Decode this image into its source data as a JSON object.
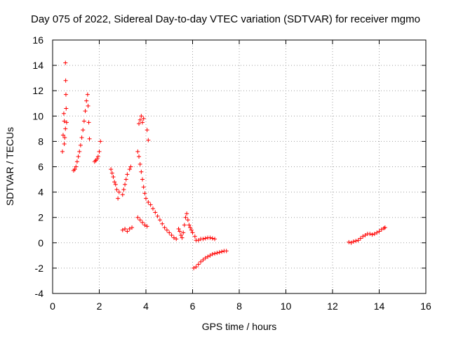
{
  "chart_data": {
    "type": "scatter",
    "title": "Day 075 of 2022, Sidereal Day-to-day VTEC variation (SDTVAR) for receiver mgmo",
    "xlabel": "GPS time / hours",
    "ylabel": "SDTVAR / TECUs",
    "xlim": [
      0,
      16
    ],
    "ylim": [
      -4,
      16
    ],
    "xticks": [
      "0",
      "2",
      "4",
      "6",
      "8",
      "10",
      "12",
      "14",
      "16"
    ],
    "yticks": [
      "-4",
      "-2",
      "0",
      "2",
      "4",
      "6",
      "8",
      "10",
      "12",
      "14",
      "16"
    ],
    "grid": true,
    "marker": "+",
    "series": [
      {
        "name": "SDTVAR",
        "color": "#ff0000",
        "points": [
          [
            0.42,
            7.2
          ],
          [
            0.45,
            8.5
          ],
          [
            0.48,
            10.2
          ],
          [
            0.5,
            9.6
          ],
          [
            0.5,
            7.8
          ],
          [
            0.52,
            8.3
          ],
          [
            0.55,
            9.0
          ],
          [
            0.55,
            14.2
          ],
          [
            0.56,
            12.8
          ],
          [
            0.57,
            11.7
          ],
          [
            0.58,
            10.6
          ],
          [
            0.6,
            9.5
          ],
          [
            0.9,
            5.7
          ],
          [
            0.95,
            5.8
          ],
          [
            1.0,
            6.0
          ],
          [
            1.05,
            6.4
          ],
          [
            1.1,
            6.8
          ],
          [
            1.15,
            7.2
          ],
          [
            1.2,
            7.7
          ],
          [
            1.25,
            8.3
          ],
          [
            1.3,
            8.9
          ],
          [
            1.35,
            9.6
          ],
          [
            1.4,
            10.4
          ],
          [
            1.45,
            11.2
          ],
          [
            1.5,
            11.7
          ],
          [
            1.52,
            10.8
          ],
          [
            1.55,
            9.5
          ],
          [
            1.58,
            8.2
          ],
          [
            1.8,
            6.4
          ],
          [
            1.85,
            6.5
          ],
          [
            1.9,
            6.6
          ],
          [
            1.95,
            6.8
          ],
          [
            2.0,
            7.2
          ],
          [
            2.05,
            8.0
          ],
          [
            2.5,
            5.8
          ],
          [
            2.55,
            5.5
          ],
          [
            2.6,
            5.2
          ],
          [
            2.65,
            4.8
          ],
          [
            2.7,
            4.6
          ],
          [
            2.75,
            4.2
          ],
          [
            2.8,
            3.5
          ],
          [
            2.85,
            4.0
          ],
          [
            3.0,
            3.8
          ],
          [
            3.05,
            4.2
          ],
          [
            3.1,
            4.6
          ],
          [
            3.15,
            5.0
          ],
          [
            3.2,
            5.4
          ],
          [
            3.3,
            5.8
          ],
          [
            3.35,
            6.0
          ],
          [
            3.0,
            1.0
          ],
          [
            3.1,
            1.1
          ],
          [
            3.2,
            0.9
          ],
          [
            3.3,
            1.1
          ],
          [
            3.4,
            1.2
          ],
          [
            3.65,
            7.2
          ],
          [
            3.7,
            6.8
          ],
          [
            3.75,
            6.2
          ],
          [
            3.8,
            5.6
          ],
          [
            3.85,
            5.0
          ],
          [
            3.9,
            4.4
          ],
          [
            3.95,
            3.9
          ],
          [
            4.0,
            3.5
          ],
          [
            4.1,
            3.2
          ],
          [
            4.2,
            3.0
          ],
          [
            4.3,
            2.7
          ],
          [
            4.4,
            2.4
          ],
          [
            4.5,
            2.1
          ],
          [
            4.6,
            1.8
          ],
          [
            4.7,
            1.5
          ],
          [
            4.8,
            1.2
          ],
          [
            4.9,
            1.0
          ],
          [
            5.0,
            0.8
          ],
          [
            5.1,
            0.6
          ],
          [
            5.2,
            0.4
          ],
          [
            5.3,
            0.3
          ],
          [
            3.7,
            9.4
          ],
          [
            3.75,
            9.7
          ],
          [
            3.8,
            10.0
          ],
          [
            3.85,
            9.5
          ],
          [
            3.9,
            9.8
          ],
          [
            4.05,
            8.9
          ],
          [
            4.1,
            8.1
          ],
          [
            3.65,
            2.0
          ],
          [
            3.75,
            1.8
          ],
          [
            3.85,
            1.6
          ],
          [
            3.95,
            1.4
          ],
          [
            4.05,
            1.3
          ],
          [
            5.4,
            1.1
          ],
          [
            5.45,
            0.9
          ],
          [
            5.5,
            0.6
          ],
          [
            5.55,
            0.4
          ],
          [
            5.6,
            0.8
          ],
          [
            5.65,
            1.4
          ],
          [
            5.7,
            2.0
          ],
          [
            5.75,
            2.3
          ],
          [
            5.8,
            1.8
          ],
          [
            5.85,
            1.4
          ],
          [
            5.9,
            1.2
          ],
          [
            5.95,
            1.0
          ],
          [
            6.0,
            0.8
          ],
          [
            6.1,
            0.5
          ],
          [
            6.15,
            0.2
          ],
          [
            6.25,
            0.2
          ],
          [
            6.35,
            0.3
          ],
          [
            6.45,
            0.3
          ],
          [
            6.55,
            0.35
          ],
          [
            6.65,
            0.4
          ],
          [
            6.75,
            0.4
          ],
          [
            6.85,
            0.35
          ],
          [
            6.95,
            0.3
          ],
          [
            6.05,
            -2.0
          ],
          [
            6.15,
            -1.9
          ],
          [
            6.25,
            -1.7
          ],
          [
            6.35,
            -1.5
          ],
          [
            6.45,
            -1.35
          ],
          [
            6.55,
            -1.2
          ],
          [
            6.65,
            -1.1
          ],
          [
            6.75,
            -1.0
          ],
          [
            6.85,
            -0.9
          ],
          [
            6.95,
            -0.85
          ],
          [
            7.05,
            -0.8
          ],
          [
            7.15,
            -0.75
          ],
          [
            7.25,
            -0.7
          ],
          [
            7.35,
            -0.65
          ],
          [
            7.45,
            -0.65
          ],
          [
            12.7,
            0.05
          ],
          [
            12.8,
            0.0
          ],
          [
            12.9,
            0.1
          ],
          [
            13.0,
            0.15
          ],
          [
            13.1,
            0.2
          ],
          [
            13.2,
            0.35
          ],
          [
            13.3,
            0.5
          ],
          [
            13.4,
            0.6
          ],
          [
            13.5,
            0.7
          ],
          [
            13.6,
            0.7
          ],
          [
            13.7,
            0.65
          ],
          [
            13.8,
            0.7
          ],
          [
            13.9,
            0.8
          ],
          [
            14.0,
            0.9
          ],
          [
            14.1,
            1.05
          ],
          [
            14.2,
            1.15
          ],
          [
            14.25,
            1.2
          ]
        ]
      }
    ]
  }
}
